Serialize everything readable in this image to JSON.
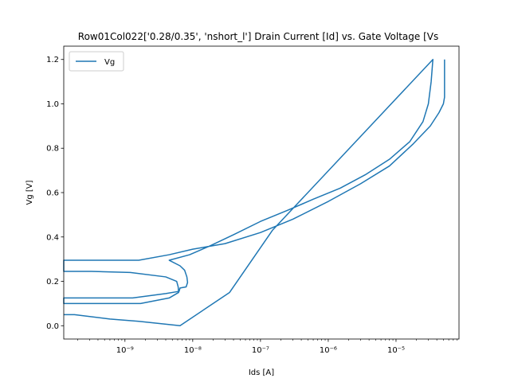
{
  "chart_data": {
    "type": "line",
    "title": "Row01Col022['0.28/0.35', 'nshort_l'] Drain Current [Id] vs. Gate Voltage [Vs",
    "xlabel": "Ids [A]",
    "ylabel": "Vg [V]",
    "xscale": "log",
    "xlim": [
      1.25e-10,
      8.5e-05
    ],
    "ylim": [
      -0.06,
      1.26
    ],
    "xticks": [
      {
        "value": 1e-09,
        "label": "10⁻⁹"
      },
      {
        "value": 1e-08,
        "label": "10⁻⁸"
      },
      {
        "value": 1e-07,
        "label": "10⁻⁷"
      },
      {
        "value": 1e-06,
        "label": "10⁻⁶"
      },
      {
        "value": 1e-05,
        "label": "10⁻⁵"
      }
    ],
    "yticks": [
      {
        "value": 0.0,
        "label": "0.0"
      },
      {
        "value": 0.2,
        "label": "0.2"
      },
      {
        "value": 0.4,
        "label": "0.4"
      },
      {
        "value": 0.6,
        "label": "0.6"
      },
      {
        "value": 0.8,
        "label": "0.8"
      },
      {
        "value": 1.0,
        "label": "1.0"
      },
      {
        "value": 1.2,
        "label": "1.2"
      }
    ],
    "grid": false,
    "legend": {
      "placement": "top-left"
    },
    "series": [
      {
        "name": "Vg",
        "color": "#1f77b4",
        "points": [
          [
            1.25e-10,
            0.05
          ],
          [
            1.8e-10,
            0.05
          ],
          [
            6e-10,
            0.03
          ],
          [
            1.6e-09,
            0.02
          ],
          [
            6.5e-09,
            0.0
          ],
          [
            3.5e-08,
            0.15
          ],
          [
            1.5e-07,
            0.43
          ],
          [
            3.5e-05,
            1.2
          ],
          [
            3.3e-05,
            1.1
          ],
          [
            3e-05,
            1.0
          ],
          [
            2.5e-05,
            0.92
          ],
          [
            1.6e-05,
            0.83
          ],
          [
            8e-06,
            0.75
          ],
          [
            3.5e-06,
            0.68
          ],
          [
            1.5e-06,
            0.62
          ],
          [
            6e-07,
            0.57
          ],
          [
            2.5e-07,
            0.52
          ],
          [
            1e-07,
            0.47
          ],
          [
            4e-08,
            0.41
          ],
          [
            1.8e-08,
            0.36
          ],
          [
            9e-09,
            0.32
          ],
          [
            4.5e-09,
            0.295
          ],
          [
            6.5e-09,
            0.27
          ],
          [
            7.6e-09,
            0.25
          ],
          [
            8.2e-09,
            0.22
          ],
          [
            8.4e-09,
            0.195
          ],
          [
            8e-09,
            0.175
          ],
          [
            6.5e-09,
            0.17
          ],
          [
            6.3e-09,
            0.155
          ],
          [
            4e-09,
            0.145
          ],
          [
            1.3e-09,
            0.125
          ],
          [
            1.25e-10,
            0.125
          ],
          [
            1.25e-10,
            0.1
          ],
          [
            1.7e-09,
            0.1
          ],
          [
            4.5e-09,
            0.125
          ],
          [
            6.2e-09,
            0.15
          ],
          [
            6.1e-09,
            0.175
          ],
          [
            5.8e-09,
            0.2
          ],
          [
            4e-09,
            0.22
          ],
          [
            1.2e-09,
            0.24
          ],
          [
            3.2e-10,
            0.245
          ],
          [
            1.25e-10,
            0.245
          ],
          [
            1.25e-10,
            0.295
          ],
          [
            1.6e-09,
            0.295
          ],
          [
            4.5e-09,
            0.32
          ],
          [
            1e-08,
            0.345
          ],
          [
            3e-08,
            0.37
          ],
          [
            1e-07,
            0.42
          ],
          [
            3e-07,
            0.48
          ],
          [
            1e-06,
            0.56
          ],
          [
            3e-06,
            0.64
          ],
          [
            8e-06,
            0.72
          ],
          [
            1.8e-05,
            0.82
          ],
          [
            3.2e-05,
            0.9
          ],
          [
            4.3e-05,
            0.96
          ],
          [
            5e-05,
            1.0
          ],
          [
            5.2e-05,
            1.03
          ],
          [
            5.2e-05,
            1.2
          ]
        ]
      }
    ]
  }
}
